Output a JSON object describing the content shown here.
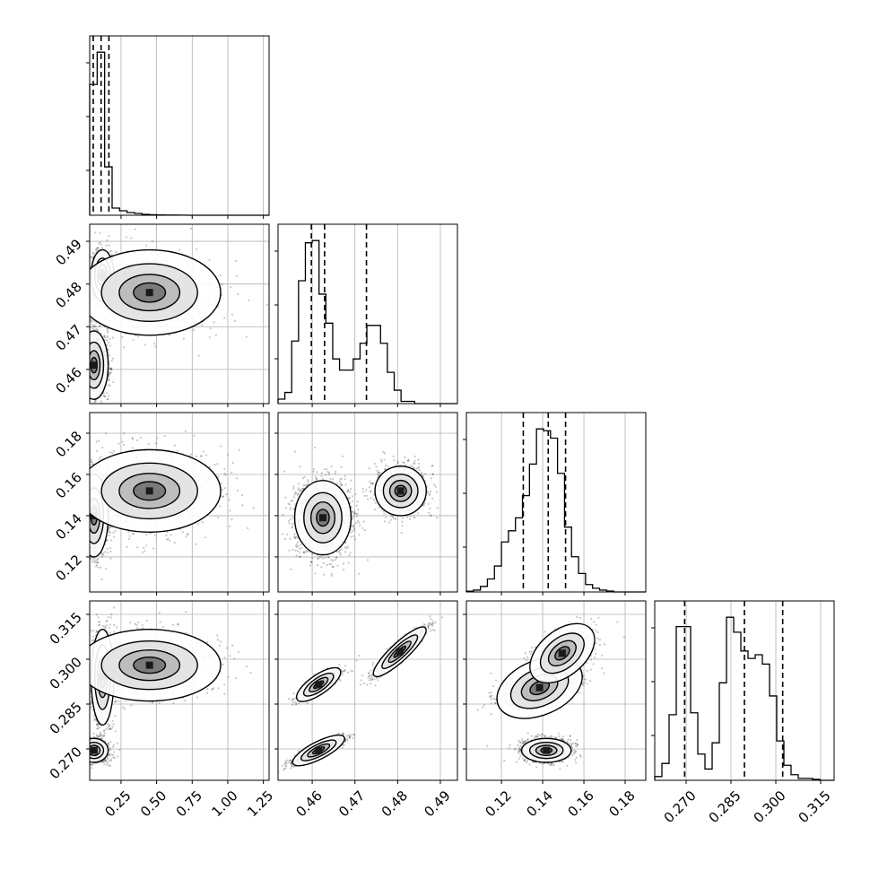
{
  "chart_data": {
    "type": "corner",
    "grid": true,
    "parameters": [
      {
        "range": [
          0.03,
          1.29
        ],
        "ticks": [
          "0.25",
          "0.50",
          "0.75",
          "1.00",
          "1.25"
        ],
        "tick_values": [
          0.25,
          0.5,
          0.75,
          1.0,
          1.25
        ],
        "quantiles": [
          0.055,
          0.11,
          0.165
        ],
        "hist": {
          "bin_edges": [
            0.03,
            0.0825,
            0.135,
            0.1875,
            0.24,
            0.2925,
            0.345,
            0.3975,
            0.45,
            0.5025,
            0.555,
            0.6075,
            0.66,
            0.7125,
            0.765,
            0.8175,
            0.87,
            0.9225,
            0.975,
            1.0275,
            1.08,
            1.1325,
            1.185,
            1.2375,
            1.29
          ],
          "counts": [
            0.73,
            0.91,
            0.27,
            0.04,
            0.025,
            0.015,
            0.01,
            0.005,
            0.003,
            0.002,
            0.001,
            0.001,
            0.0005,
            0,
            0,
            0,
            0,
            0,
            0,
            0,
            0,
            0,
            0,
            0
          ]
        }
      },
      {
        "range": [
          0.452,
          0.494
        ],
        "ticks": [
          "0.46",
          "0.47",
          "0.48",
          "0.49"
        ],
        "tick_values": [
          0.46,
          0.47,
          0.48,
          0.49
        ],
        "quantiles": [
          0.4598,
          0.4629,
          0.4727
        ],
        "hist": {
          "bin_edges": [
            0.452,
            0.4536,
            0.4552,
            0.4568,
            0.4584,
            0.46,
            0.4616,
            0.4632,
            0.4648,
            0.4664,
            0.468,
            0.4696,
            0.4712,
            0.4728,
            0.4744,
            0.476,
            0.4776,
            0.4792,
            0.4808,
            0.4824,
            0.484,
            0.4856,
            0.4872,
            0.4888,
            0.4904,
            0.492,
            0.494
          ],
          "counts": [
            0.02,
            0.05,
            0.28,
            0.55,
            0.72,
            0.73,
            0.49,
            0.36,
            0.2,
            0.15,
            0.15,
            0.2,
            0.27,
            0.35,
            0.35,
            0.27,
            0.14,
            0.06,
            0.01,
            0.01,
            0,
            0,
            0,
            0,
            0,
            0
          ]
        }
      },
      {
        "range": [
          0.103,
          0.19
        ],
        "ticks": [
          "0.12",
          "0.14",
          "0.16",
          "0.18"
        ],
        "tick_values": [
          0.12,
          0.14,
          0.16,
          0.18
        ],
        "quantiles": [
          0.1306,
          0.1427,
          0.1511
        ],
        "hist": {
          "bin_edges": [
            0.103,
            0.1064,
            0.1098,
            0.1132,
            0.1166,
            0.12,
            0.1234,
            0.1268,
            0.1302,
            0.1336,
            0.137,
            0.1404,
            0.1438,
            0.1472,
            0.1506,
            0.154,
            0.1574,
            0.1608,
            0.1642,
            0.1676,
            0.171,
            0.1744,
            0.1778,
            0.1812,
            0.1846,
            0.19
          ],
          "counts": [
            0.004,
            0.01,
            0.03,
            0.07,
            0.14,
            0.27,
            0.33,
            0.4,
            0.52,
            0.69,
            0.88,
            0.87,
            0.83,
            0.64,
            0.35,
            0.19,
            0.1,
            0.04,
            0.02,
            0.01,
            0.005,
            0,
            0,
            0,
            0
          ]
        }
      },
      {
        "range": [
          0.2595,
          0.3195
        ],
        "ticks": [
          "0.270",
          "0.285",
          "0.300",
          "0.315"
        ],
        "tick_values": [
          0.27,
          0.285,
          0.3,
          0.315
        ],
        "quantiles": [
          0.2695,
          0.2895,
          0.3023
        ],
        "hist": {
          "bin_edges": [
            0.2595,
            0.2619,
            0.2643,
            0.2667,
            0.2691,
            0.2715,
            0.2739,
            0.2763,
            0.2787,
            0.2811,
            0.2835,
            0.2859,
            0.2883,
            0.2907,
            0.2931,
            0.2955,
            0.2979,
            0.3003,
            0.3027,
            0.3051,
            0.3075,
            0.3099,
            0.3123,
            0.3147,
            0.3171,
            0.3195
          ],
          "counts": [
            0.02,
            0.09,
            0.35,
            0.82,
            0.82,
            0.36,
            0.14,
            0.06,
            0.2,
            0.52,
            0.87,
            0.79,
            0.69,
            0.65,
            0.67,
            0.62,
            0.45,
            0.21,
            0.08,
            0.03,
            0.01,
            0.01,
            0.005,
            0,
            0
          ]
        }
      }
    ],
    "scatter_panels": [
      {
        "row": 1,
        "col": 0,
        "modes": [
          {
            "x": 0.06,
            "y": 0.461,
            "sx": 0.05,
            "sy": 0.004,
            "w": 0.5
          },
          {
            "x": 0.12,
            "y": 0.482,
            "sx": 0.04,
            "sy": 0.003,
            "w": 0.3
          },
          {
            "x": 0.45,
            "y": 0.478,
            "sx": 0.25,
            "sy": 0.005,
            "w": 0.2
          }
        ]
      },
      {
        "row": 2,
        "col": 0,
        "modes": [
          {
            "x": 0.06,
            "y": 0.14,
            "sx": 0.05,
            "sy": 0.01,
            "w": 0.6
          },
          {
            "x": 0.45,
            "y": 0.152,
            "sx": 0.25,
            "sy": 0.01,
            "w": 0.4
          }
        ]
      },
      {
        "row": 2,
        "col": 1,
        "modes": [
          {
            "x": 0.4625,
            "y": 0.139,
            "sx": 0.0033,
            "sy": 0.009,
            "w": 0.6
          },
          {
            "x": 0.4807,
            "y": 0.152,
            "sx": 0.003,
            "sy": 0.006,
            "w": 0.4
          }
        ]
      },
      {
        "row": 3,
        "col": 0,
        "modes": [
          {
            "x": 0.06,
            "y": 0.2695,
            "sx": 0.05,
            "sy": 0.002,
            "w": 0.4
          },
          {
            "x": 0.12,
            "y": 0.294,
            "sx": 0.04,
            "sy": 0.008,
            "w": 0.35
          },
          {
            "x": 0.45,
            "y": 0.298,
            "sx": 0.25,
            "sy": 0.006,
            "w": 0.25
          }
        ]
      },
      {
        "row": 3,
        "col": 1,
        "modes": [
          {
            "x": 0.4615,
            "y": 0.2695,
            "sx": 0.003,
            "sy": 0.0022,
            "w": 0.4,
            "rho": 0.9
          },
          {
            "x": 0.4615,
            "y": 0.2915,
            "sx": 0.0025,
            "sy": 0.0025,
            "w": 0.25,
            "rho": 0.85
          },
          {
            "x": 0.4805,
            "y": 0.3025,
            "sx": 0.003,
            "sy": 0.004,
            "w": 0.35,
            "rho": 0.93
          }
        ]
      },
      {
        "row": 3,
        "col": 2,
        "modes": [
          {
            "x": 0.1418,
            "y": 0.2695,
            "sx": 0.006,
            "sy": 0.002,
            "w": 0.4
          },
          {
            "x": 0.1385,
            "y": 0.2905,
            "sx": 0.01,
            "sy": 0.003,
            "w": 0.3,
            "rho": 0.5
          },
          {
            "x": 0.1495,
            "y": 0.302,
            "sx": 0.007,
            "sy": 0.004,
            "w": 0.3,
            "rho": 0.5
          }
        ]
      }
    ]
  }
}
